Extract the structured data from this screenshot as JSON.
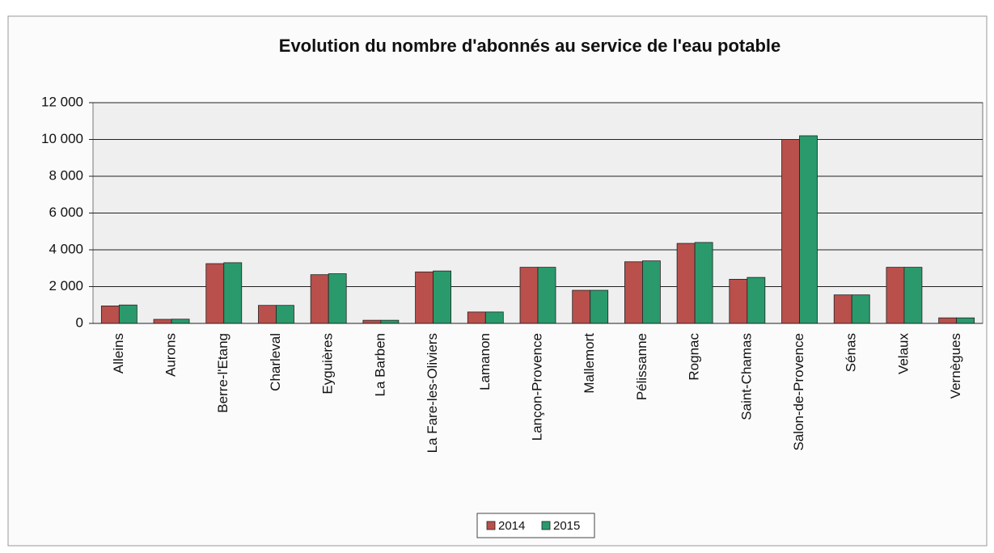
{
  "chart_data": {
    "type": "bar",
    "title": "Evolution du nombre d'abonnés au service de l'eau potable",
    "categories": [
      "Alleins",
      "Aurons",
      "Berre-l'Etang",
      "Charleval",
      "Eyguières",
      "La Barben",
      "La Fare-les-Oliviers",
      "Lamanon",
      "Lançon-Provence",
      "Mallemort",
      "Pélissanne",
      "Rognac",
      "Saint-Chamas",
      "Salon-de-Provence",
      "Sénas",
      "Velaux",
      "Vernègues"
    ],
    "series": [
      {
        "name": "2014",
        "color": "#b9504c",
        "values": [
          950,
          220,
          3250,
          980,
          2650,
          170,
          2800,
          620,
          3050,
          1800,
          3350,
          4350,
          2400,
          10000,
          1550,
          3050,
          300
        ]
      },
      {
        "name": "2015",
        "color": "#2a9a6c",
        "values": [
          1000,
          230,
          3300,
          980,
          2700,
          170,
          2850,
          620,
          3050,
          1800,
          3400,
          4400,
          2500,
          10200,
          1550,
          3050,
          300
        ]
      }
    ],
    "ylim": [
      0,
      12000
    ],
    "yticks": [
      0,
      {
        "value": 2000,
        "label": "2 000"
      },
      {
        "value": 4000,
        "label": "4 000"
      },
      {
        "value": 6000,
        "label": "6 000"
      },
      {
        "value": 8000,
        "label": "8 000"
      },
      {
        "value": 10000,
        "label": "10 000"
      },
      {
        "value": 12000,
        "label": "12 000"
      }
    ],
    "grid": true,
    "legend": "bottom"
  }
}
